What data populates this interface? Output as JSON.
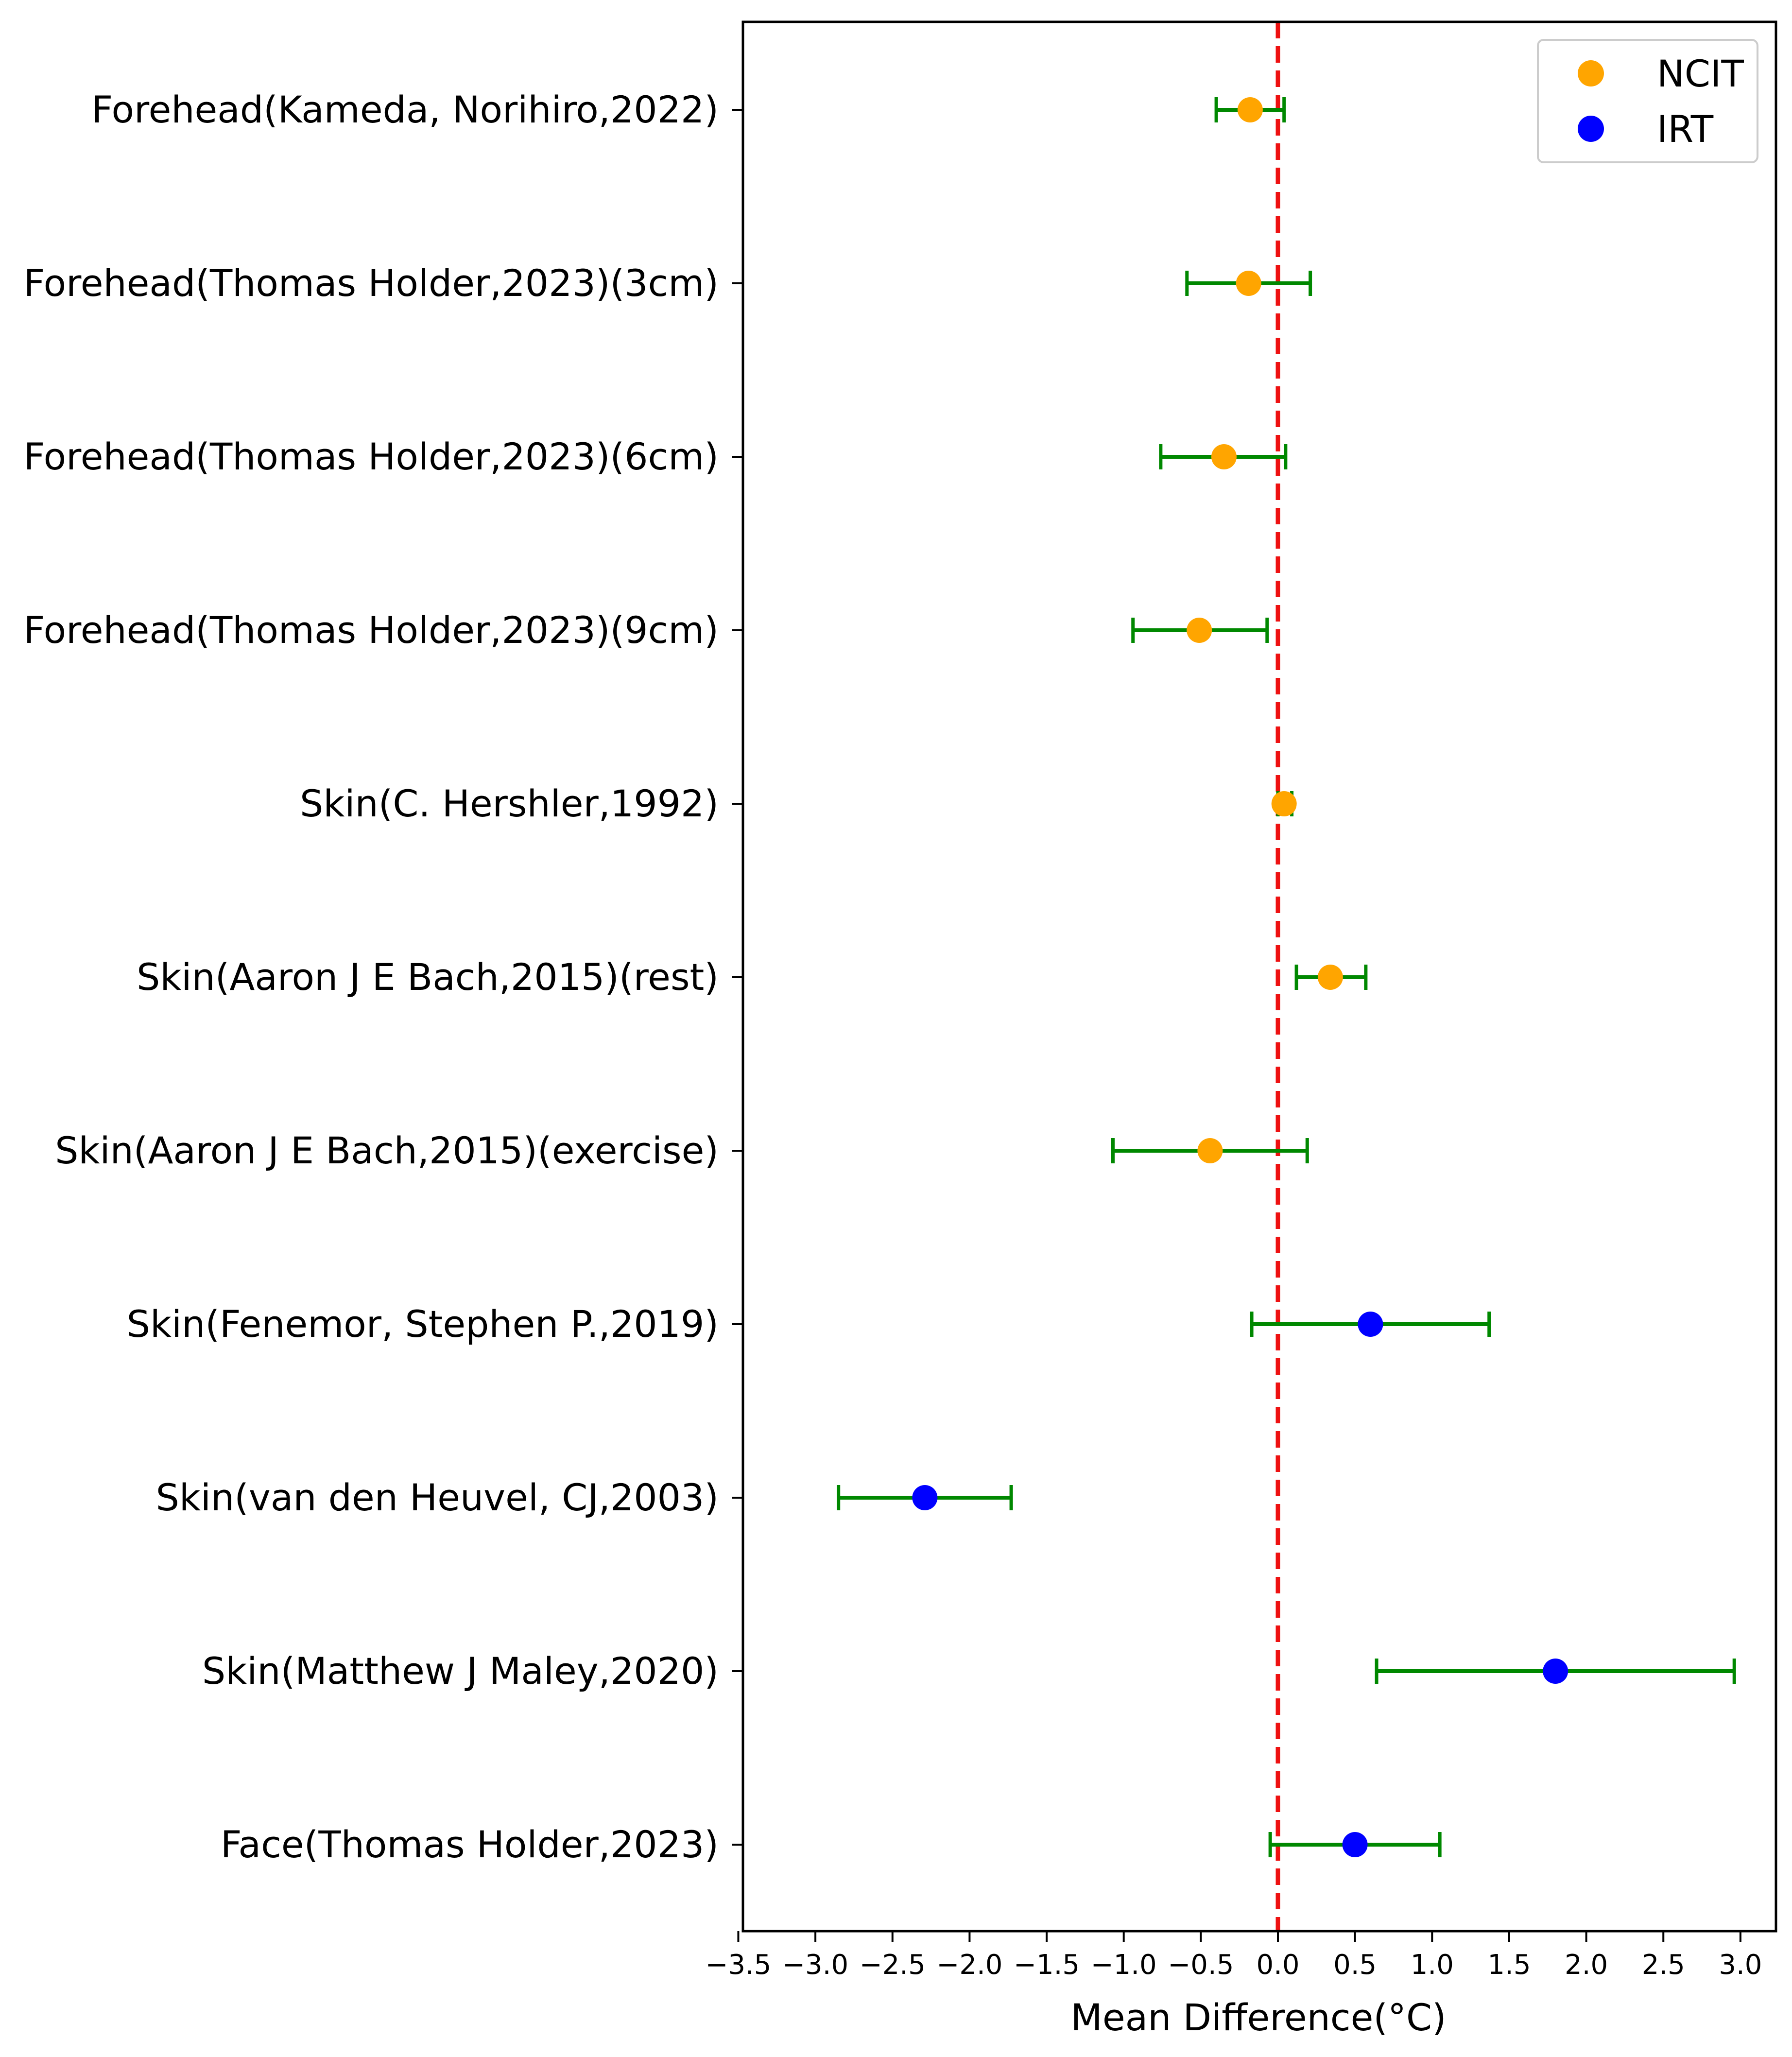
{
  "chart_data": {
    "type": "forest",
    "xlabel": "Mean Difference(°C)",
    "ylabel": "",
    "title": "",
    "xlim": [
      -3.5,
      3.25
    ],
    "xticks": [
      -3.5,
      -3.0,
      -2.5,
      -2.0,
      -1.5,
      -1.0,
      -0.5,
      0.0,
      0.5,
      1.0,
      1.5,
      2.0,
      2.5,
      3.0
    ],
    "xtick_labels": [
      "−3.5",
      "−3.0",
      "−2.5",
      "−2.0",
      "−1.5",
      "−1.0",
      "−0.5",
      "0.0",
      "0.5",
      "1.0",
      "1.5",
      "2.0",
      "2.5",
      "3.0"
    ],
    "reference_line": {
      "x": 0.0,
      "style": "dashed",
      "color": "#ee1111"
    },
    "errorbar_color": "#008800",
    "legend": {
      "placement": "top-right",
      "entries": [
        {
          "label": "NCIT",
          "color": "#ffa500"
        },
        {
          "label": "IRT",
          "color": "#0000ff"
        }
      ]
    },
    "grid": false,
    "categories": [
      "Forehead(Kameda, Norihiro,2022)",
      "Forehead(Thomas Holder,2023)(3cm)",
      "Forehead(Thomas Holder,2023)(6cm)",
      "Forehead(Thomas Holder,2023)(9cm)",
      "Skin(C. Hershler,1992)",
      "Skin(Aaron J E Bach,2015)(rest)",
      "Skin(Aaron J E Bach,2015)(exercise)",
      "Skin(Fenemor, Stephen P.,2019)",
      "Skin(van den Heuvel, CJ,2003)",
      "Skin(Matthew J Maley,2020)",
      "Face(Thomas Holder,2023)"
    ],
    "points": [
      {
        "mean": -0.18,
        "lower": -0.4,
        "upper": 0.04,
        "group": "NCIT"
      },
      {
        "mean": -0.19,
        "lower": -0.59,
        "upper": 0.21,
        "group": "NCIT"
      },
      {
        "mean": -0.35,
        "lower": -0.76,
        "upper": 0.05,
        "group": "NCIT"
      },
      {
        "mean": -0.51,
        "lower": -0.94,
        "upper": -0.07,
        "group": "NCIT"
      },
      {
        "mean": 0.04,
        "lower": 0.0,
        "upper": 0.09,
        "group": "NCIT"
      },
      {
        "mean": 0.34,
        "lower": 0.12,
        "upper": 0.57,
        "group": "NCIT"
      },
      {
        "mean": -0.44,
        "lower": -1.07,
        "upper": 0.19,
        "group": "NCIT"
      },
      {
        "mean": 0.6,
        "lower": -0.17,
        "upper": 1.37,
        "group": "IRT"
      },
      {
        "mean": -2.29,
        "lower": -2.85,
        "upper": -1.73,
        "group": "IRT"
      },
      {
        "mean": 1.8,
        "lower": 0.64,
        "upper": 2.96,
        "group": "IRT"
      },
      {
        "mean": 0.5,
        "lower": -0.05,
        "upper": 1.05,
        "group": "IRT"
      }
    ]
  }
}
